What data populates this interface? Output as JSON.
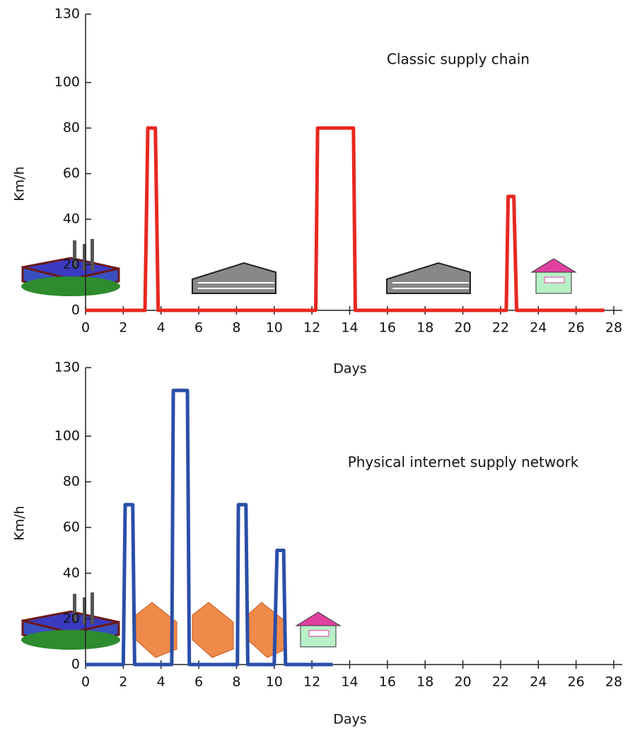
{
  "chart_data": [
    {
      "type": "line",
      "annotation": "Classic supply chain",
      "x_label": "Days",
      "y_label": "Km/h",
      "color": "#e8281e",
      "x": [
        0,
        3.15,
        3.3,
        3.7,
        3.85,
        12.2,
        12.3,
        14.2,
        14.3,
        22.3,
        22.4,
        22.7,
        22.85,
        27.5
      ],
      "values": [
        0,
        0,
        80,
        80,
        0,
        0,
        80,
        80,
        0,
        0,
        50,
        50,
        0,
        0
      ],
      "xlim": [
        0,
        28
      ],
      "ylim": [
        0,
        130
      ],
      "xticks": [
        0,
        2,
        4,
        6,
        8,
        10,
        12,
        14,
        16,
        18,
        20,
        22,
        24,
        26,
        28
      ],
      "yticks": [
        0,
        20,
        40,
        60,
        80,
        100,
        130
      ]
    },
    {
      "type": "line",
      "annotation": "Physical internet supply network",
      "x_label": "Days",
      "y_label": "Km/h",
      "color": "#2a4fa8",
      "x": [
        0,
        2.0,
        2.1,
        2.5,
        2.6,
        4.57,
        4.65,
        5.4,
        5.5,
        8.05,
        8.1,
        8.5,
        8.6,
        10.0,
        10.15,
        10.5,
        10.6,
        13.1
      ],
      "values": [
        0,
        0,
        70,
        70,
        0,
        0,
        120,
        120,
        0,
        0,
        70,
        70,
        0,
        0,
        50,
        50,
        0,
        0
      ],
      "xlim": [
        0,
        28
      ],
      "ylim": [
        0,
        130
      ],
      "xticks": [
        0,
        2,
        4,
        6,
        8,
        10,
        12,
        14,
        16,
        18,
        20,
        22,
        24,
        26,
        28
      ],
      "yticks": [
        0,
        20,
        40,
        60,
        80,
        100,
        130
      ]
    }
  ]
}
